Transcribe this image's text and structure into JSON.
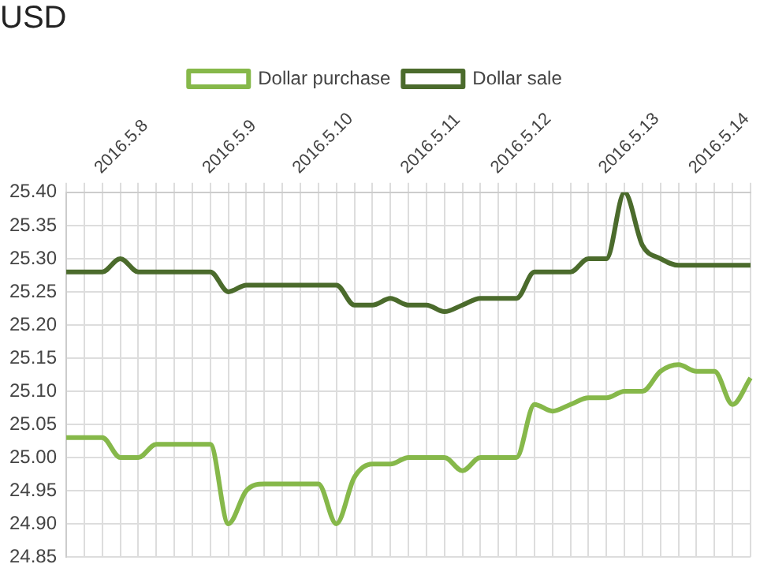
{
  "chart_data": {
    "type": "line",
    "title": "USD",
    "categories": [
      null,
      null,
      null,
      "2016.5.8",
      null,
      null,
      null,
      null,
      null,
      "2016.5.9",
      null,
      null,
      null,
      null,
      "2016.5.10",
      null,
      null,
      null,
      null,
      null,
      "2016.5.11",
      null,
      null,
      null,
      null,
      "2016.5.12",
      null,
      null,
      null,
      null,
      null,
      "2016.5.13",
      null,
      null,
      null,
      null,
      "2016.5.14",
      null,
      null
    ],
    "series": [
      {
        "name": "Dollar purchase",
        "color": "#86b84a",
        "values": [
          25.03,
          25.03,
          25.03,
          25.0,
          25.0,
          25.02,
          25.02,
          25.02,
          25.02,
          24.9,
          24.95,
          24.96,
          24.96,
          24.96,
          24.96,
          24.9,
          24.97,
          24.99,
          24.99,
          25.0,
          25.0,
          25.0,
          24.98,
          25.0,
          25.0,
          25.0,
          25.08,
          25.07,
          25.08,
          25.09,
          25.09,
          25.1,
          25.1,
          25.13,
          25.14,
          25.13,
          25.13,
          25.08,
          25.12
        ]
      },
      {
        "name": "Dollar sale",
        "color": "#4b6b2c",
        "values": [
          25.28,
          25.28,
          25.28,
          25.3,
          25.28,
          25.28,
          25.28,
          25.28,
          25.28,
          25.25,
          25.26,
          25.26,
          25.26,
          25.26,
          25.26,
          25.26,
          25.23,
          25.23,
          25.24,
          25.23,
          25.23,
          25.22,
          25.23,
          25.24,
          25.24,
          25.24,
          25.28,
          25.28,
          25.28,
          25.3,
          25.3,
          25.4,
          25.32,
          25.3,
          25.29,
          25.29,
          25.29,
          25.29,
          25.29
        ]
      }
    ],
    "ylim": [
      24.85,
      25.4
    ],
    "yticks": [
      {
        "value": 24.85,
        "label": "24.85"
      },
      {
        "value": 24.9,
        "label": "24.90"
      },
      {
        "value": 24.95,
        "label": "24.95"
      },
      {
        "value": 25,
        "label": "25.00"
      },
      {
        "value": 25.05,
        "label": "25.05"
      },
      {
        "value": 25.1,
        "label": "25.10"
      },
      {
        "value": 25.15,
        "label": "25.15"
      },
      {
        "value": 25.2,
        "label": "25.20"
      },
      {
        "value": 25.25,
        "label": "25.25"
      },
      {
        "value": 25.3,
        "label": "25.30"
      },
      {
        "value": 25.35,
        "label": "25.35"
      },
      {
        "value": 25.4,
        "label": "25.40"
      }
    ],
    "grid": true,
    "legend": "top",
    "marker": "none",
    "line_style": "solid"
  }
}
